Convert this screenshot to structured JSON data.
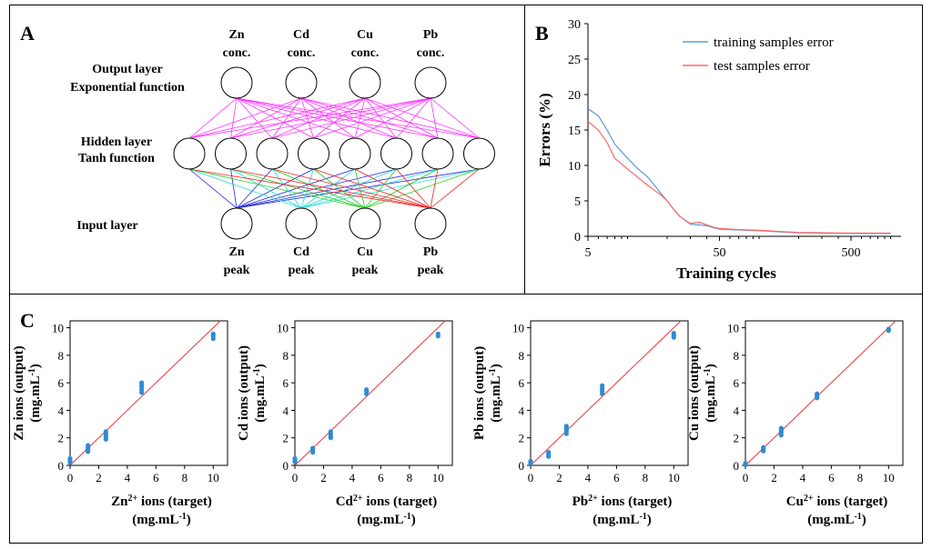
{
  "panels": {
    "A": {
      "label": "A",
      "output_nodes": [
        {
          "line1": "Zn",
          "line2": "conc."
        },
        {
          "line1": "Cd",
          "line2": "conc."
        },
        {
          "line1": "Cu",
          "line2": "conc."
        },
        {
          "line1": "Pb",
          "line2": "conc."
        }
      ],
      "input_nodes": [
        {
          "line1": "Zn",
          "line2": "peak"
        },
        {
          "line1": "Cd",
          "line2": "peak"
        },
        {
          "line1": "Cu",
          "line2": "peak"
        },
        {
          "line1": "Pb",
          "line2": "peak"
        }
      ],
      "hidden_count": 8,
      "layer_labels": {
        "output_1": "Output layer",
        "output_2": "Exponential function",
        "hidden_1": "Hidden layer",
        "hidden_2": "Tanh function",
        "input_1": "Input  layer"
      },
      "colors": {
        "hidden_output_edges": "#ff33ff",
        "input_edges": [
          "#2222dd",
          "#22dddd",
          "#22cc22",
          "#ee2222"
        ]
      }
    },
    "B": {
      "label": "B"
    },
    "C": {
      "label": "C"
    }
  },
  "chart_data": [
    {
      "panel": "B",
      "type": "line",
      "xscale": "log",
      "xlim": [
        5,
        1200
      ],
      "ylim": [
        0,
        30
      ],
      "xticks": [
        5,
        50,
        500
      ],
      "yticks": [
        0,
        5,
        10,
        15,
        20,
        25,
        30
      ],
      "xlabel": "Training cycles",
      "ylabel": "Errors (%)",
      "legend_position": "top-right",
      "series": [
        {
          "name": "training samples error",
          "color": "#5b9bd5",
          "x": [
            5,
            6,
            7,
            8,
            10,
            12,
            14,
            16,
            18,
            20,
            22,
            25,
            30,
            35,
            40,
            45,
            50,
            70,
            100,
            150,
            200,
            300,
            500,
            1000
          ],
          "y": [
            18,
            17,
            15,
            13,
            11,
            9.5,
            8.5,
            7.2,
            6.0,
            5.0,
            4.0,
            2.8,
            1.7,
            1.6,
            1.5,
            1.2,
            1.0,
            0.9,
            0.8,
            0.6,
            0.5,
            0.45,
            0.4,
            0.4
          ]
        },
        {
          "name": "test samples error",
          "color": "#ff6666",
          "x": [
            5,
            6,
            7,
            8,
            10,
            12,
            14,
            16,
            18,
            20,
            22,
            25,
            30,
            35,
            40,
            45,
            50,
            70,
            100,
            150,
            200,
            300,
            500,
            1000
          ],
          "y": [
            16.2,
            15,
            13.2,
            11,
            9.5,
            8.3,
            7.3,
            6.5,
            5.8,
            5.0,
            4.0,
            2.8,
            1.8,
            2.0,
            1.6,
            1.3,
            1.1,
            0.95,
            0.85,
            0.65,
            0.55,
            0.5,
            0.45,
            0.45
          ]
        }
      ]
    },
    {
      "panel": "C",
      "type": "scatter",
      "xlim": [
        0,
        11
      ],
      "ylim": [
        0,
        10.5
      ],
      "xticks": [
        0,
        2,
        4,
        6,
        8,
        10
      ],
      "yticks": [
        0,
        2,
        4,
        6,
        8,
        10
      ],
      "ylabel_1": "Zn ions (output)",
      "ylabel_2": "(mg.mL",
      "xlabel_ion": "Zn",
      "xlabel_rest": " ions (target)",
      "xlabel_2": "(mg.mL",
      "sup_charge": "2+",
      "sup_unit": "-1",
      "unit_close": ")",
      "point_color": "#2e8bd4",
      "line_color": "#ee3333",
      "x": [
        0,
        0,
        0,
        1.25,
        1.25,
        1.25,
        1.25,
        2.5,
        2.5,
        2.5,
        2.5,
        5,
        5,
        5,
        5,
        5,
        10,
        10,
        10
      ],
      "y": [
        0.2,
        0.35,
        0.5,
        1.0,
        1.15,
        1.3,
        1.45,
        1.9,
        2.1,
        2.3,
        2.45,
        5.3,
        5.5,
        5.7,
        5.85,
        6.0,
        9.2,
        9.4,
        9.55
      ]
    },
    {
      "panel": "C",
      "type": "scatter",
      "xlim": [
        0,
        11
      ],
      "ylim": [
        0,
        10.5
      ],
      "xticks": [
        0,
        2,
        4,
        6,
        8,
        10
      ],
      "yticks": [
        0,
        2,
        4,
        6,
        8,
        10
      ],
      "ylabel_1": "Cd ions (output)",
      "ylabel_2": "(mg.mL",
      "xlabel_ion": "Cd",
      "xlabel_rest": " ions (target)",
      "xlabel_2": "(mg.mL",
      "sup_charge": "2+",
      "sup_unit": "-1",
      "unit_close": ")",
      "point_color": "#2e8bd4",
      "line_color": "#ee3333",
      "x": [
        0,
        0,
        0,
        1.25,
        1.25,
        1.25,
        2.5,
        2.5,
        2.5,
        2.5,
        5,
        5,
        5,
        10,
        10
      ],
      "y": [
        0.25,
        0.4,
        0.5,
        0.95,
        1.1,
        1.25,
        2.0,
        2.15,
        2.3,
        2.45,
        5.2,
        5.35,
        5.5,
        9.4,
        9.55
      ]
    },
    {
      "panel": "C",
      "type": "scatter",
      "xlim": [
        0,
        11
      ],
      "ylim": [
        0,
        10.5
      ],
      "xticks": [
        0,
        2,
        4,
        6,
        8,
        10
      ],
      "yticks": [
        0,
        2,
        4,
        6,
        8,
        10
      ],
      "ylabel_1": "Pb ions (output)",
      "ylabel_2": "(mg.mL",
      "xlabel_ion": "Pb",
      "xlabel_rest": " ions (target)",
      "xlabel_2": "(mg.mL",
      "sup_charge": "2+",
      "sup_unit": "-1",
      "unit_close": ")",
      "point_color": "#2e8bd4",
      "line_color": "#ee3333",
      "x": [
        0,
        0,
        1.25,
        1.25,
        1.25,
        2.5,
        2.5,
        2.5,
        2.5,
        5,
        5,
        5,
        5,
        10,
        10,
        10
      ],
      "y": [
        0.15,
        0.3,
        0.65,
        0.8,
        0.95,
        2.3,
        2.5,
        2.7,
        2.85,
        5.2,
        5.4,
        5.6,
        5.8,
        9.3,
        9.45,
        9.6
      ]
    },
    {
      "panel": "C",
      "type": "scatter",
      "xlim": [
        0,
        11
      ],
      "ylim": [
        0,
        10.5
      ],
      "xticks": [
        0,
        2,
        4,
        6,
        8,
        10
      ],
      "yticks": [
        0,
        2,
        4,
        6,
        8,
        10
      ],
      "ylabel_1": "Cu ions (output)",
      "ylabel_2": "(mg.mL",
      "xlabel_ion": "Cu",
      "xlabel_rest": " ions (target)",
      "xlabel_2": "(mg.mL",
      "sup_charge": "2+",
      "sup_unit": "-1",
      "unit_close": ")",
      "point_color": "#2e8bd4",
      "line_color": "#ee3333",
      "x": [
        0,
        0,
        1.25,
        1.25,
        1.25,
        2.5,
        2.5,
        2.5,
        2.5,
        5,
        5,
        5,
        10,
        10
      ],
      "y": [
        0.05,
        0.15,
        1.05,
        1.2,
        1.3,
        2.2,
        2.4,
        2.55,
        2.7,
        4.9,
        5.05,
        5.2,
        9.8,
        9.9
      ]
    }
  ]
}
